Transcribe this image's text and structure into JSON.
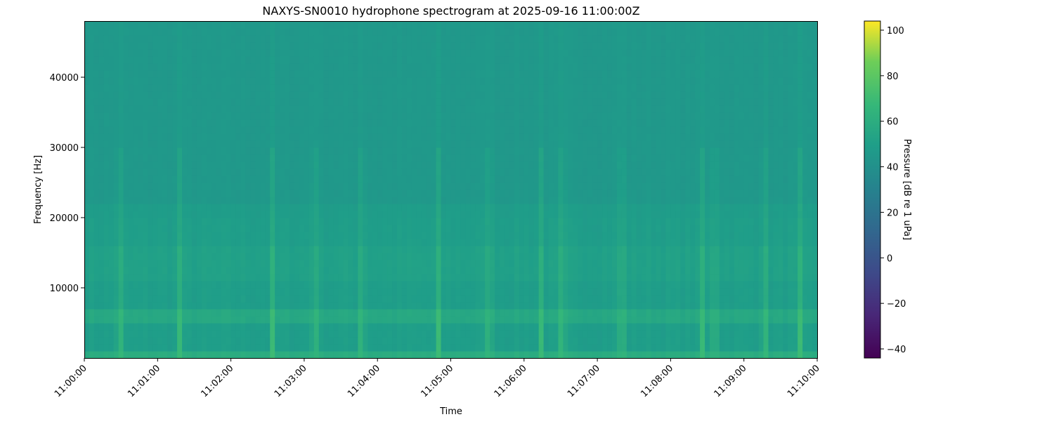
{
  "chart_data": {
    "type": "heatmap",
    "title": "NAXYS-SN0010 hydrophone spectrogram at 2025-09-16 11:00:00Z",
    "xlabel": "Time",
    "ylabel": "Frequency [Hz]",
    "xlim": [
      "11:00:00",
      "11:10:00"
    ],
    "ylim": [
      0,
      48000
    ],
    "x_ticks": [
      "11:00:00",
      "11:01:00",
      "11:02:00",
      "11:03:00",
      "11:04:00",
      "11:05:00",
      "11:06:00",
      "11:07:00",
      "11:08:00",
      "11:09:00",
      "11:10:00"
    ],
    "y_ticks": [
      10000,
      20000,
      30000,
      40000
    ],
    "colormap": "viridis",
    "colorbar": {
      "label": "Pressure [dB re 1 uPa]",
      "range": [
        -44,
        104
      ],
      "ticks": [
        -40,
        -20,
        0,
        20,
        40,
        60,
        80,
        100
      ]
    },
    "frequency_profile_db": [
      {
        "from_hz": 0,
        "to_hz": 800,
        "db": 57
      },
      {
        "from_hz": 800,
        "to_hz": 5000,
        "db": 47
      },
      {
        "from_hz": 5000,
        "to_hz": 7000,
        "db": 54
      },
      {
        "from_hz": 7000,
        "to_hz": 11000,
        "db": 47
      },
      {
        "from_hz": 11000,
        "to_hz": 16000,
        "db": 49
      },
      {
        "from_hz": 16000,
        "to_hz": 22000,
        "db": 47
      },
      {
        "from_hz": 22000,
        "to_hz": 48000,
        "db": 44
      }
    ],
    "transient_events": [
      "11:00:29",
      "11:01:18",
      "11:02:34",
      "11:03:09",
      "11:03:47",
      "11:04:50",
      "11:05:31",
      "11:06:14",
      "11:06:31",
      "11:07:20",
      "11:08:26",
      "11:08:36",
      "11:09:17",
      "11:09:46"
    ],
    "transient_peak_db": 66
  }
}
